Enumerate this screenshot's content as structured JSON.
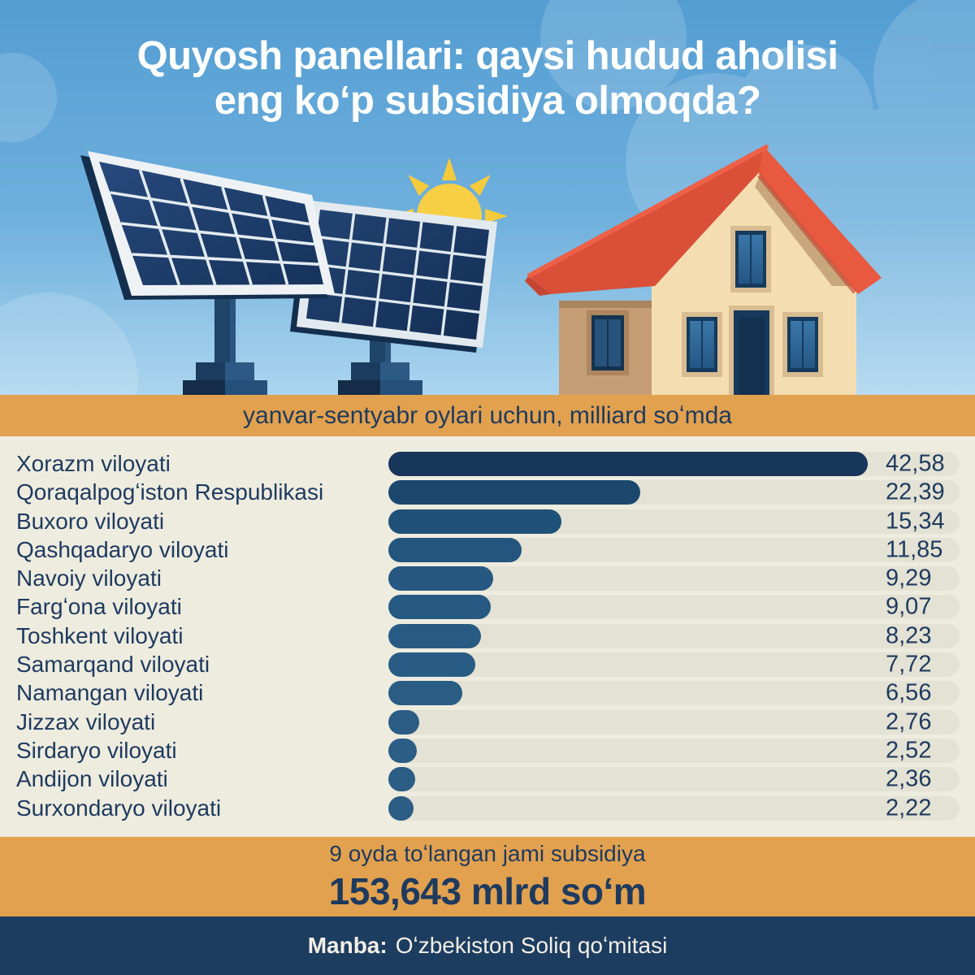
{
  "colors": {
    "sky_top": "#539dd2",
    "sky_bottom": "#abd5ee",
    "accent_orange": "#e2a14e",
    "navy_text": "#1e3a5f",
    "panel_bg": "#eeecdf",
    "track": "#e4e2d4",
    "footer_bg": "#1d3d60",
    "footer_text": "#f2efe6",
    "title_white": "#ffffff",
    "roof_red": "#d94f38",
    "sun_yellow": "#f6cf45",
    "bar_darkest": "#18355a",
    "bar_light": "#2b5d85"
  },
  "title": {
    "line1": "Quyosh panellari: qaysi hudud aholisi",
    "line2": "eng koʻp subsidiya olmoqda?"
  },
  "banner": {
    "text": "yanvar-sentyabr oylari uchun, milliard soʻmda"
  },
  "chart_data": {
    "type": "bar",
    "orientation": "horizontal",
    "title": "Quyosh panellari: qaysi hudud aholisi eng koʻp subsidiya olmoqda?",
    "subtitle": "yanvar-sentyabr oylari uchun, milliard soʻmda",
    "unit": "milliard soʻm",
    "grid": false,
    "legend": false,
    "xlim": [
      0,
      50
    ],
    "categories": [
      "Xorazm viloyati",
      "Qoraqalpogʻiston Respublikasi",
      "Buxoro viloyati",
      "Qashqadaryo viloyati",
      "Navoiy viloyati",
      "Fargʻona viloyati",
      "Toshkent viloyati",
      "Samarqand viloyati",
      "Namangan viloyati",
      "Jizzax viloyati",
      "Sirdaryo viloyati",
      "Andijon viloyati",
      "Surxondaryo viloyati"
    ],
    "values": [
      42.58,
      22.39,
      15.34,
      11.85,
      9.29,
      9.07,
      8.23,
      7.72,
      6.56,
      2.76,
      2.52,
      2.36,
      2.22
    ],
    "value_labels": [
      "42,58",
      "22,39",
      "15,34",
      "11,85",
      "9,29",
      "9,07",
      "8,23",
      "7,72",
      "6,56",
      "2,76",
      "2,52",
      "2,36",
      "2,22"
    ],
    "bar_colors": [
      "#18355a",
      "#1d486e",
      "#205178",
      "#23557e",
      "#265881",
      "#275a82",
      "#285b83",
      "#295c84",
      "#2a5c84",
      "#2b5d85",
      "#2b5d85",
      "#2b5d85",
      "#2b5d85"
    ]
  },
  "total": {
    "caption": "9 oyda toʻlangan jami subsidiya",
    "amount": "153,643 mlrd soʻm"
  },
  "footer": {
    "source_label": "Manba:",
    "source_text": "Oʻzbekiston Soliq qoʻmitasi"
  },
  "illustration": {
    "icons": [
      "sun-icon",
      "solar-panel-front-icon",
      "solar-panel-back-icon",
      "house-icon",
      "clouds-icon"
    ]
  }
}
